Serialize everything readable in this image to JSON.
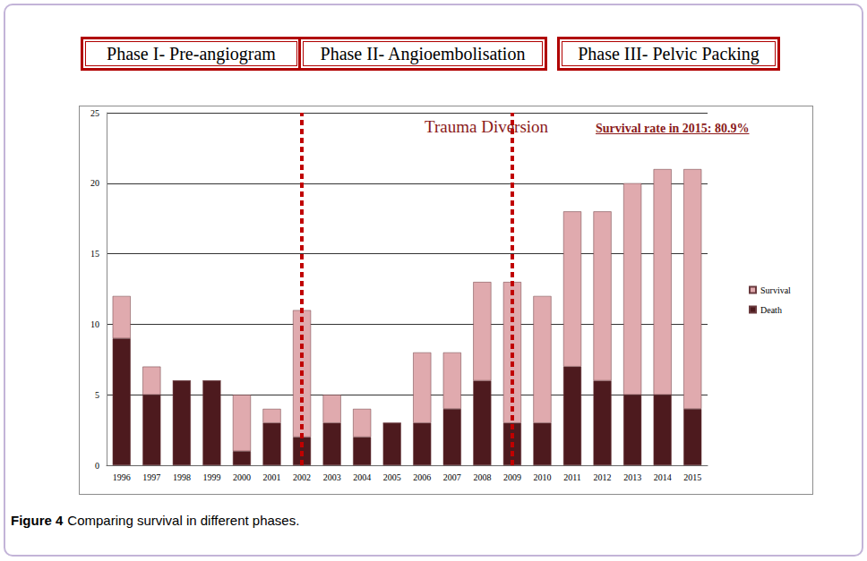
{
  "chart_data": {
    "type": "bar",
    "headers": [
      "Phase I- Pre-angiogram",
      "Phase II- Angioembolisation",
      "Phase III- Pelvic Packing"
    ],
    "annotations": [
      "Trauma Diversion",
      "Survival rate in 2015: 80.9%"
    ],
    "caption": {
      "label": "Figure 4",
      "text": "Comparing survival in different phases."
    },
    "categories": [
      "1996",
      "1997",
      "1998",
      "1999",
      "2000",
      "2001",
      "2002",
      "2003",
      "2004",
      "2005",
      "2006",
      "2007",
      "2008",
      "2009",
      "2010",
      "2011",
      "2012",
      "2013",
      "2014",
      "2015"
    ],
    "series": [
      {
        "name": "Death",
        "color": "#4d1a1e",
        "values": [
          9,
          5,
          6,
          6,
          1,
          3,
          2,
          3,
          2,
          3,
          3,
          4,
          6,
          3,
          3,
          7,
          6,
          5,
          5,
          4
        ]
      },
      {
        "name": "Survival",
        "color": "#e0aaae",
        "values": [
          3,
          2,
          0,
          0,
          4,
          1,
          9,
          2,
          2,
          0,
          5,
          4,
          7,
          10,
          9,
          11,
          12,
          15,
          16,
          17
        ]
      }
    ],
    "vertical_lines": [
      "2002",
      "2009"
    ],
    "stacked": true,
    "ylim": [
      0,
      25
    ],
    "yticks": [
      0,
      5,
      10,
      15,
      20,
      25
    ],
    "grid": true,
    "legend": "right"
  }
}
